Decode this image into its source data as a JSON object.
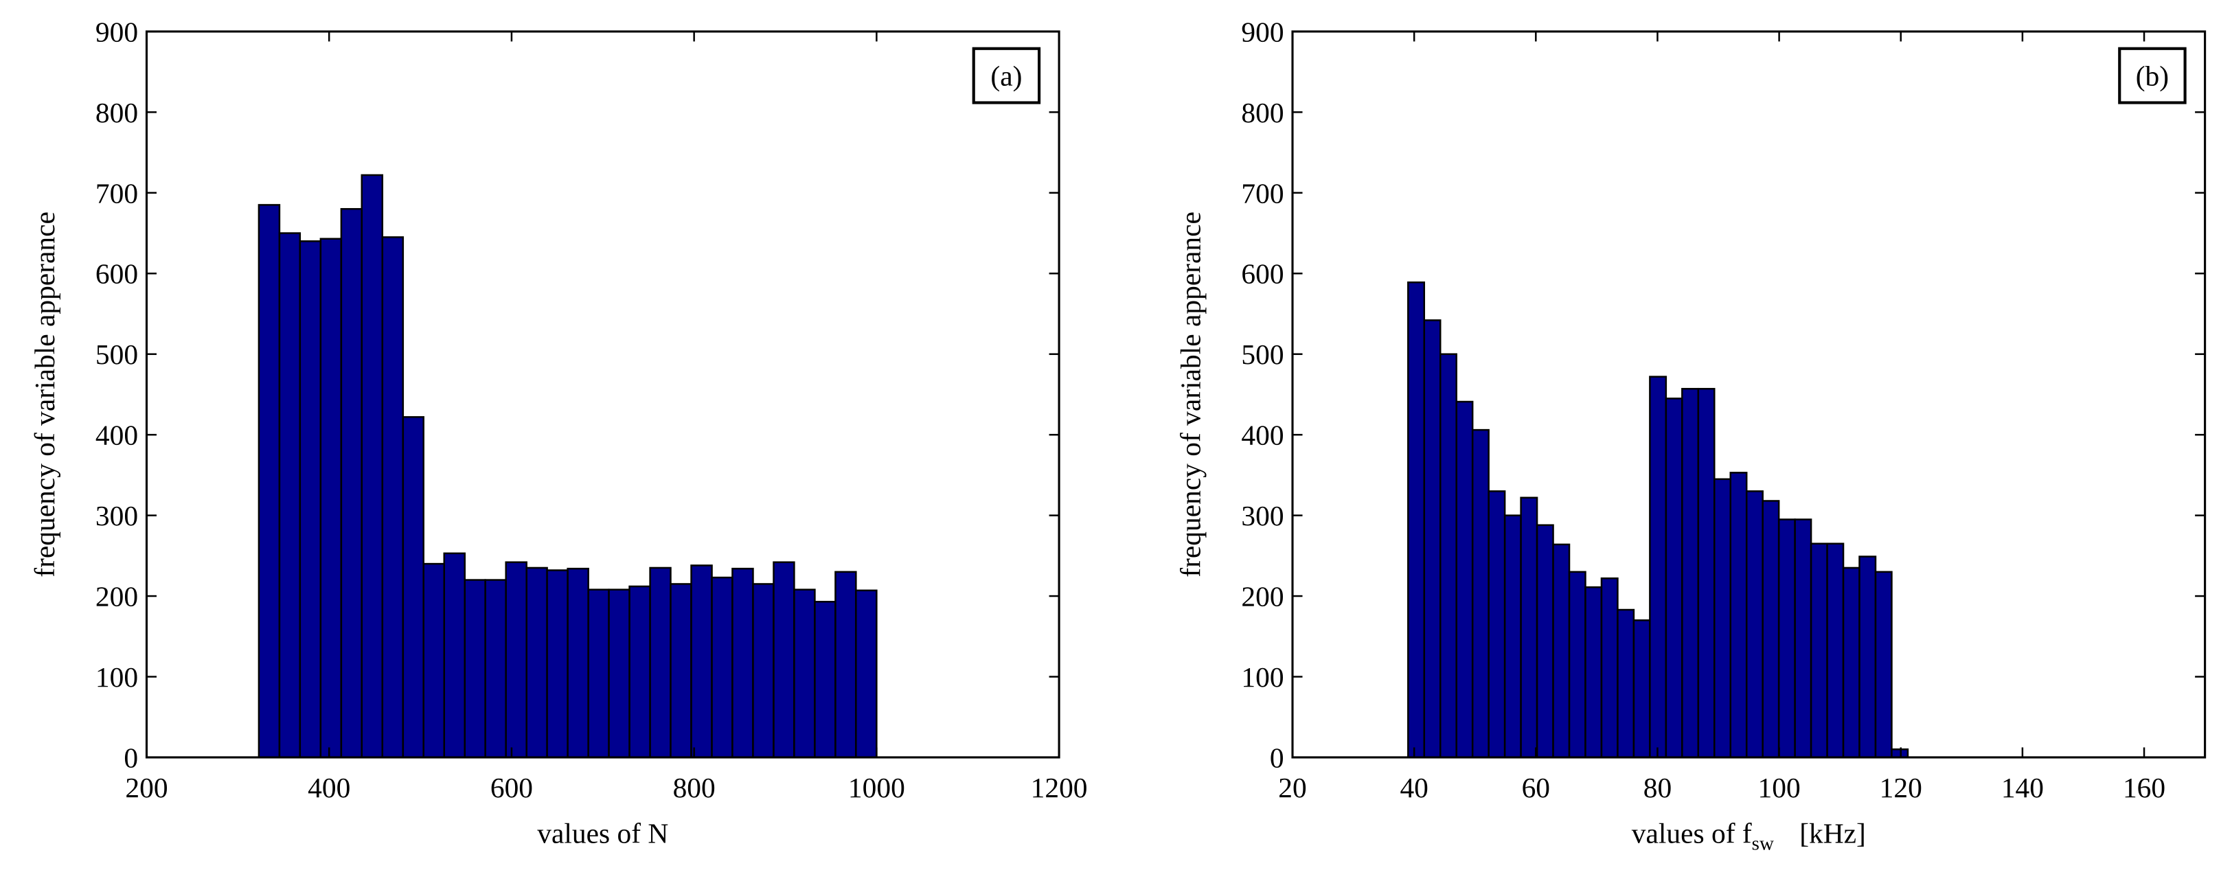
{
  "chart_data": [
    {
      "type": "histogram",
      "panel_label": "(a)",
      "xlabel": "values of N",
      "ylabel": "frequency of variable apperance",
      "color": "#00008f",
      "bins": [
        323.0,
        345.6,
        368.1,
        390.7,
        413.3,
        435.8,
        458.4,
        481.0,
        503.5,
        526.1,
        548.7,
        571.2,
        593.8,
        616.4,
        638.9,
        661.5,
        684.1,
        706.6,
        729.2,
        751.8,
        774.3,
        796.9,
        819.5,
        842.0,
        864.6,
        887.2,
        909.7,
        932.3,
        954.9,
        977.4,
        1000.0
      ],
      "values": [
        685,
        650,
        640,
        643,
        680,
        722,
        645,
        422,
        240,
        253,
        220,
        220,
        242,
        235,
        232,
        234,
        208,
        208,
        212,
        235,
        215,
        238,
        223,
        234,
        215,
        242,
        208,
        193,
        230,
        207
      ],
      "xlim": [
        200,
        1200
      ],
      "xticks": [
        200,
        400,
        600,
        800,
        1000,
        1200
      ],
      "ylim": [
        0,
        900
      ],
      "yticks": [
        0,
        100,
        200,
        300,
        400,
        500,
        600,
        700,
        800,
        900
      ]
    },
    {
      "type": "histogram",
      "panel_label": "(b)",
      "xlabel": "values of f",
      "xlabel_sub": "sw",
      "xlabel_unit": "[kHz]",
      "ylabel": "frequency of variable apperance",
      "color": "#00008f",
      "bins": [
        39,
        41.65,
        44.3,
        46.95,
        49.6,
        52.25,
        54.9,
        57.55,
        60.2,
        62.85,
        65.5,
        68.15,
        70.8,
        73.45,
        76.1,
        78.75,
        81.4,
        84.05,
        86.7,
        89.35,
        92,
        94.65,
        97.3,
        99.95,
        102.6,
        105.25,
        107.9,
        110.55,
        113.2,
        115.85,
        118.5,
        121.15
      ],
      "values": [
        589,
        542,
        500,
        441,
        406,
        330,
        300,
        322,
        288,
        264,
        230,
        211,
        222,
        183,
        170,
        472,
        445,
        457,
        457,
        345,
        353,
        330,
        318,
        295,
        295,
        265,
        265,
        235,
        249,
        230,
        10
      ],
      "xlim": [
        20,
        170
      ],
      "xticks": [
        20,
        40,
        60,
        80,
        100,
        120,
        140,
        160
      ],
      "ylim": [
        0,
        900
      ],
      "yticks": [
        0,
        100,
        200,
        300,
        400,
        500,
        600,
        700,
        800,
        900
      ]
    }
  ]
}
